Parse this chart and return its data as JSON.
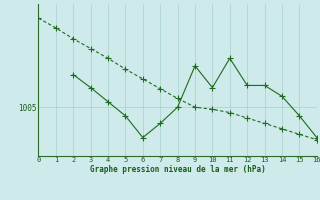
{
  "background_color": "#ceeaea",
  "line1_x": [
    0,
    1,
    2,
    3,
    4,
    5,
    6,
    7,
    8,
    9,
    10,
    11,
    12,
    13,
    14,
    15,
    16
  ],
  "line1_y": [
    1013.2,
    1012.3,
    1011.3,
    1010.4,
    1009.5,
    1008.5,
    1007.6,
    1006.7,
    1005.8,
    1005.0,
    1004.8,
    1004.5,
    1004.0,
    1003.5,
    1003.0,
    1002.5,
    1002.0
  ],
  "line2_x": [
    2,
    3,
    4,
    5,
    6,
    7,
    8,
    9,
    10,
    11,
    12,
    13,
    14,
    15,
    16
  ],
  "line2_y": [
    1008.0,
    1006.8,
    1005.5,
    1004.2,
    1002.2,
    1003.5,
    1005.0,
    1008.8,
    1006.8,
    1009.5,
    1007.0,
    1007.0,
    1006.0,
    1004.2,
    1002.2
  ],
  "line_color": "#1e6b1e",
  "marker_size": 2.5,
  "ytick_label": "1005",
  "ytick_value": 1005,
  "xlabel": "Graphe pression niveau de la mer (hPa)",
  "xlim": [
    0,
    16
  ],
  "ylim": [
    1000.5,
    1014.5
  ],
  "grid_color": "#a8cece",
  "axis_color": "#2d6b2d",
  "font_color": "#1a5c1a"
}
